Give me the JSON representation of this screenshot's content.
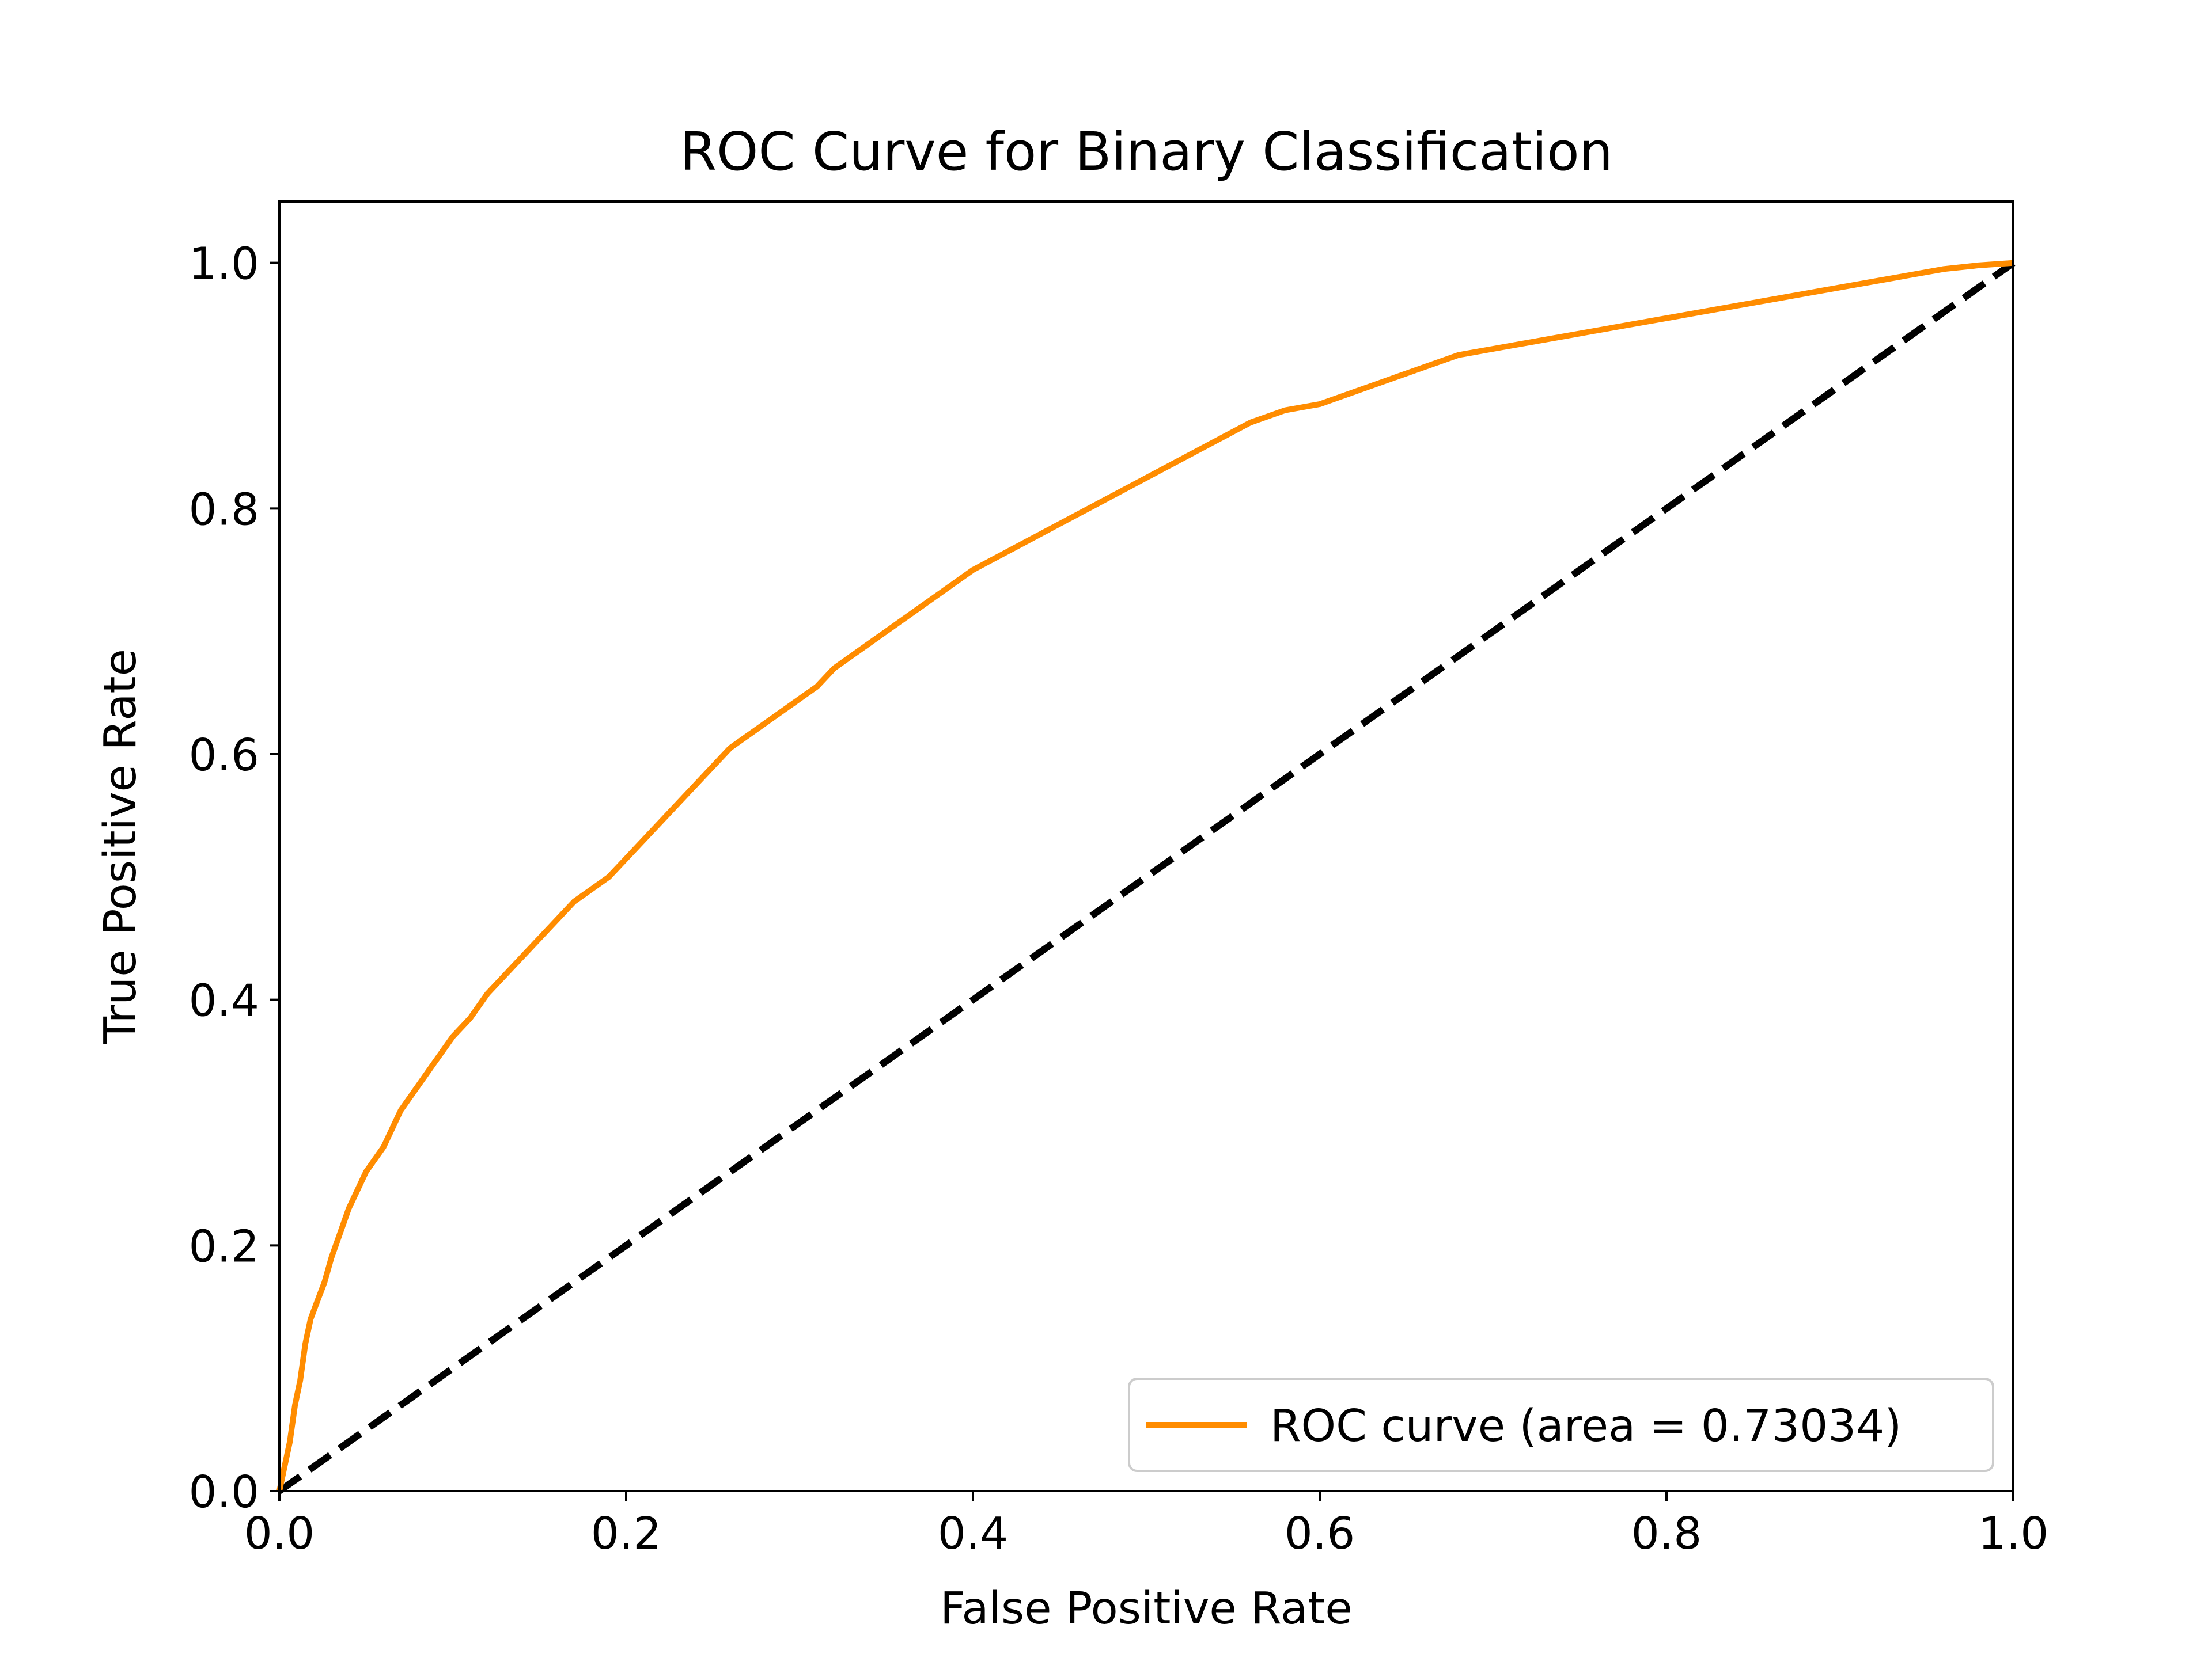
{
  "chart_data": {
    "type": "line",
    "title": "ROC Curve for Binary Classification",
    "xlabel": "False Positive Rate",
    "ylabel": "True Positive Rate",
    "xlim": [
      0.0,
      1.0
    ],
    "ylim": [
      0.0,
      1.05
    ],
    "xticks": [
      "0.0",
      "0.2",
      "0.4",
      "0.6",
      "0.8",
      "1.0"
    ],
    "yticks": [
      "0.0",
      "0.2",
      "0.4",
      "0.6",
      "0.8",
      "1.0"
    ],
    "grid": false,
    "legend_position": "lower-right",
    "series": [
      {
        "name": "ROC curve (area = 0.73034)",
        "color": "#ff8c00",
        "style": "solid",
        "x": [
          0.0,
          0.003,
          0.006,
          0.009,
          0.012,
          0.015,
          0.018,
          0.022,
          0.026,
          0.03,
          0.035,
          0.04,
          0.045,
          0.05,
          0.055,
          0.06,
          0.07,
          0.08,
          0.09,
          0.1,
          0.11,
          0.12,
          0.13,
          0.14,
          0.15,
          0.16,
          0.17,
          0.18,
          0.19,
          0.2,
          0.21,
          0.22,
          0.23,
          0.24,
          0.25,
          0.26,
          0.27,
          0.28,
          0.29,
          0.3,
          0.31,
          0.32,
          0.33,
          0.34,
          0.35,
          0.36,
          0.37,
          0.38,
          0.39,
          0.4,
          0.42,
          0.44,
          0.46,
          0.48,
          0.5,
          0.52,
          0.54,
          0.56,
          0.58,
          0.6,
          0.62,
          0.64,
          0.66,
          0.68,
          0.7,
          0.72,
          0.74,
          0.76,
          0.78,
          0.8,
          0.82,
          0.84,
          0.86,
          0.88,
          0.9,
          0.92,
          0.94,
          0.96,
          0.98,
          1.0
        ],
        "y": [
          0.0,
          0.02,
          0.04,
          0.07,
          0.09,
          0.12,
          0.14,
          0.155,
          0.17,
          0.19,
          0.21,
          0.23,
          0.245,
          0.26,
          0.27,
          0.28,
          0.31,
          0.33,
          0.35,
          0.37,
          0.385,
          0.405,
          0.42,
          0.435,
          0.45,
          0.465,
          0.48,
          0.49,
          0.5,
          0.515,
          0.53,
          0.545,
          0.56,
          0.575,
          0.59,
          0.605,
          0.615,
          0.625,
          0.635,
          0.645,
          0.655,
          0.67,
          0.68,
          0.69,
          0.7,
          0.71,
          0.72,
          0.73,
          0.74,
          0.75,
          0.765,
          0.78,
          0.795,
          0.81,
          0.825,
          0.84,
          0.855,
          0.87,
          0.88,
          0.885,
          0.895,
          0.905,
          0.915,
          0.925,
          0.93,
          0.935,
          0.94,
          0.945,
          0.95,
          0.955,
          0.96,
          0.965,
          0.97,
          0.975,
          0.98,
          0.985,
          0.99,
          0.995,
          0.998,
          1.0
        ]
      },
      {
        "name": "",
        "color": "#000000",
        "style": "dashed",
        "x": [
          0.0,
          1.0
        ],
        "y": [
          0.0,
          1.0
        ]
      }
    ]
  }
}
